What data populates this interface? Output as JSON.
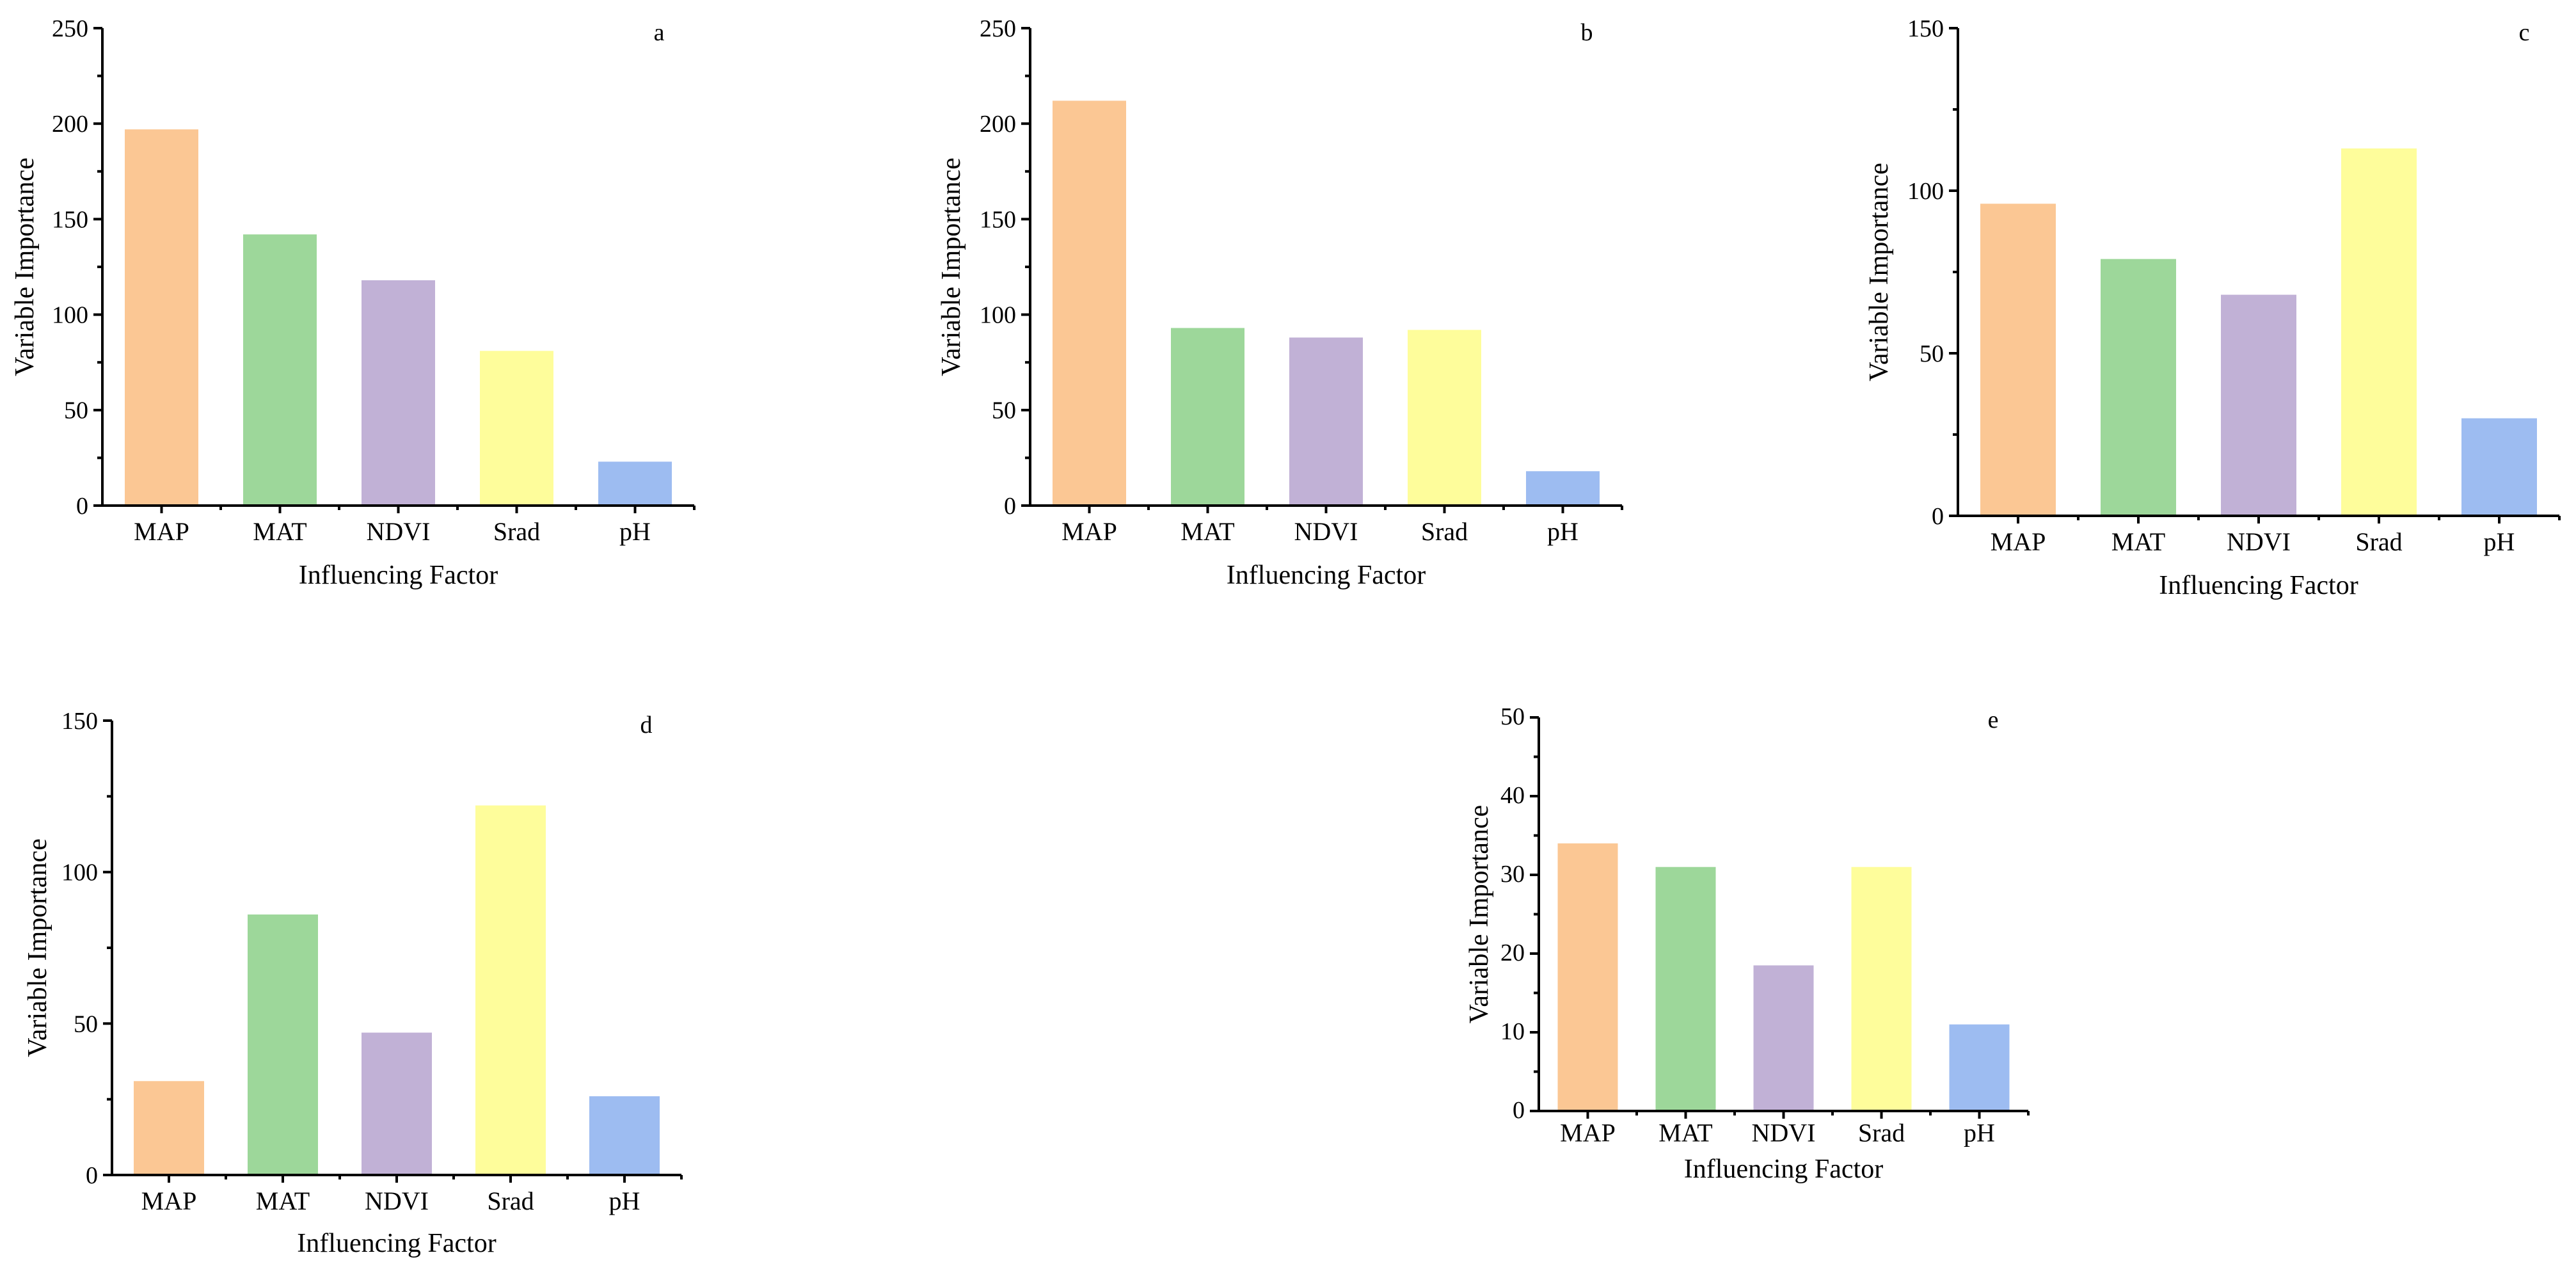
{
  "chart_data": [
    {
      "type": "bar",
      "panel_label": "a",
      "categories": [
        "MAP",
        "MAT",
        "NDVI",
        "Srad",
        "pH"
      ],
      "values": [
        197,
        142,
        118,
        81,
        23
      ],
      "xlabel": "Influencing Factor",
      "ylabel": "Variable Importance",
      "ylim": [
        0,
        250
      ],
      "yticks": [
        0,
        50,
        100,
        150,
        200,
        250
      ]
    },
    {
      "type": "bar",
      "panel_label": "b",
      "categories": [
        "MAP",
        "MAT",
        "NDVI",
        "Srad",
        "pH"
      ],
      "values": [
        212,
        93,
        88,
        92,
        18
      ],
      "xlabel": "Influencing Factor",
      "ylabel": "Variable Importance",
      "ylim": [
        0,
        250
      ],
      "yticks": [
        0,
        50,
        100,
        150,
        200,
        250
      ]
    },
    {
      "type": "bar",
      "panel_label": "c",
      "categories": [
        "MAP",
        "MAT",
        "NDVI",
        "Srad",
        "pH"
      ],
      "values": [
        96,
        79,
        68,
        113,
        30
      ],
      "xlabel": "Influencing Factor",
      "ylabel": "Variable Importance",
      "ylim": [
        0,
        150
      ],
      "yticks": [
        0,
        50,
        100,
        150
      ]
    },
    {
      "type": "bar",
      "panel_label": "d",
      "categories": [
        "MAP",
        "MAT",
        "NDVI",
        "Srad",
        "pH"
      ],
      "values": [
        31,
        86,
        47,
        122,
        26
      ],
      "xlabel": "Influencing Factor",
      "ylabel": "Variable Importance",
      "ylim": [
        0,
        150
      ],
      "yticks": [
        0,
        50,
        100,
        150
      ]
    },
    {
      "type": "bar",
      "panel_label": "e",
      "categories": [
        "MAP",
        "MAT",
        "NDVI",
        "Srad",
        "pH"
      ],
      "values": [
        34,
        31,
        18.5,
        31,
        11
      ],
      "xlabel": "Influencing Factor",
      "ylabel": "Variable Importance",
      "ylim": [
        0,
        50
      ],
      "yticks": [
        0,
        10,
        20,
        30,
        40,
        50
      ]
    }
  ],
  "colors": {
    "bars": [
      "#fbc794",
      "#9dd79a",
      "#c1b1d6",
      "#fefd9b",
      "#9dbcf1"
    ]
  }
}
